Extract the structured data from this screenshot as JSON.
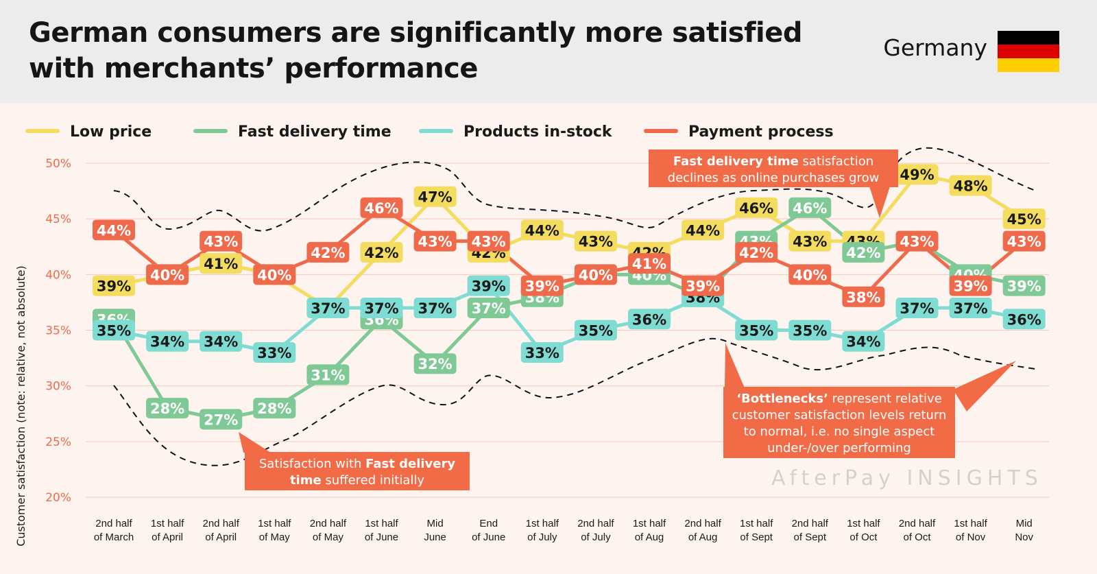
{
  "header": {
    "title": "German consumers are significantly more satisfied with merchants’ performance",
    "country": "Germany",
    "flag_colors": [
      "#000000",
      "#dd0000",
      "#ffce00"
    ]
  },
  "colors": {
    "Low price": "#f3dc5e",
    "Fast delivery time": "#7ec995",
    "Products in-stock": "#7edcd2",
    "Payment process": "#ef6a4b",
    "axis_text": "#f06a4c",
    "background": "#fdf3ef"
  },
  "chart_data": {
    "type": "line",
    "ylabel": "Customer satisfaction (note: relative, not absolute)",
    "ylim": [
      20,
      50
    ],
    "yticks": [
      20,
      25,
      30,
      35,
      40,
      45,
      50
    ],
    "ytick_labels": [
      "20%",
      "25%",
      "30%",
      "35%",
      "40%",
      "45%",
      "50%"
    ],
    "grid": true,
    "legend_position": "top",
    "categories": [
      [
        "2nd half",
        "of March"
      ],
      [
        "1st half",
        "of April"
      ],
      [
        "2nd half",
        "of April"
      ],
      [
        "1st half",
        "of May"
      ],
      [
        "2nd half",
        "of May"
      ],
      [
        "1st half",
        "of June"
      ],
      [
        "Mid",
        "June"
      ],
      [
        "End",
        "of June"
      ],
      [
        "1st half",
        "of July"
      ],
      [
        "2nd half",
        "of July"
      ],
      [
        "1st half",
        "of Aug"
      ],
      [
        "2nd half",
        "of Aug"
      ],
      [
        "1st half",
        "of Sept"
      ],
      [
        "2nd half",
        "of Sept"
      ],
      [
        "1st half",
        "of Oct"
      ],
      [
        "2nd half",
        "of Oct"
      ],
      [
        "1st half",
        "of Nov"
      ],
      [
        "Mid",
        "Nov"
      ]
    ],
    "series": [
      {
        "name": "Low price",
        "values": [
          39,
          40,
          41,
          40,
          37,
          42,
          47,
          42,
          44,
          43,
          42,
          44,
          46,
          43,
          43,
          49,
          48,
          45
        ]
      },
      {
        "name": "Fast delivery time",
        "values": [
          36,
          28,
          27,
          28,
          31,
          36,
          32,
          37,
          38,
          40,
          40,
          38,
          43,
          46,
          42,
          43,
          40,
          39
        ]
      },
      {
        "name": "Products in-stock",
        "values": [
          35,
          34,
          34,
          33,
          37,
          37,
          37,
          39,
          33,
          35,
          36,
          38,
          35,
          35,
          34,
          37,
          37,
          36
        ]
      },
      {
        "name": "Payment process",
        "values": [
          44,
          40,
          43,
          40,
          42,
          46,
          43,
          43,
          39,
          40,
          41,
          39,
          42,
          40,
          38,
          43,
          39,
          43
        ]
      }
    ],
    "label_suffix": "%",
    "annotations": {
      "delivery_declines": [
        "Fast delivery time",
        " satisfaction declines as online purchases grow"
      ],
      "delivery_initial": [
        "Satisfaction with ",
        "Fast delivery time",
        " suffered initially"
      ],
      "bottlenecks": [
        "‘Bottlenecks’",
        " represent relative customer satisfaction levels return to normal, i.e. no single aspect under-/over performing"
      ]
    }
  },
  "branding": {
    "text": "AfterPay INSIGHTS"
  }
}
